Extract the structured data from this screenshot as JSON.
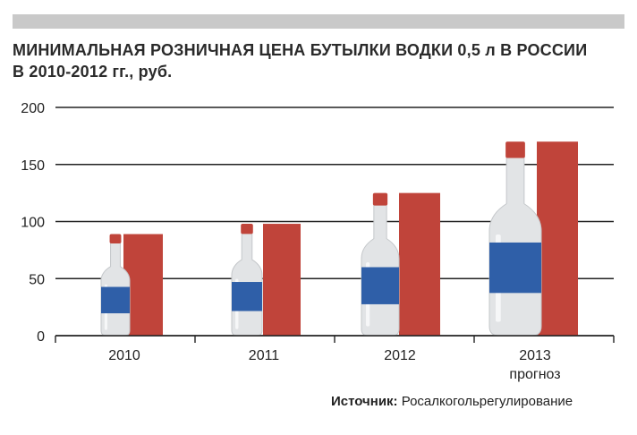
{
  "header": {
    "title_line1": "МИНИМАЛЬНАЯ РОЗНИЧНАЯ ЦЕНА БУТЫЛКИ ВОДКИ 0,5 л В РОССИИ",
    "title_line2": "В 2010-2012 гг., руб."
  },
  "source": {
    "label": "Источник:",
    "text": "Росалкогольрегулирование"
  },
  "colors": {
    "bar": "#c0443a",
    "bottle_glass": "#e2e4e6",
    "bottle_label": "#2f5fa8",
    "bottle_cap": "#c0443a",
    "grid": "#222222"
  },
  "chart_data": {
    "type": "bar",
    "categories": [
      "2010",
      "2011",
      "2012",
      "2013"
    ],
    "category_sublabels": [
      "",
      "",
      "",
      "прогноз"
    ],
    "values": [
      89,
      98,
      125,
      170
    ],
    "ylim": [
      0,
      200
    ],
    "yticks": [
      0,
      50,
      100,
      150,
      200
    ],
    "ytick_labels": [
      "0",
      "50",
      "100",
      "150",
      "200"
    ],
    "grid": true,
    "title": "",
    "xlabel": "",
    "ylabel": ""
  }
}
